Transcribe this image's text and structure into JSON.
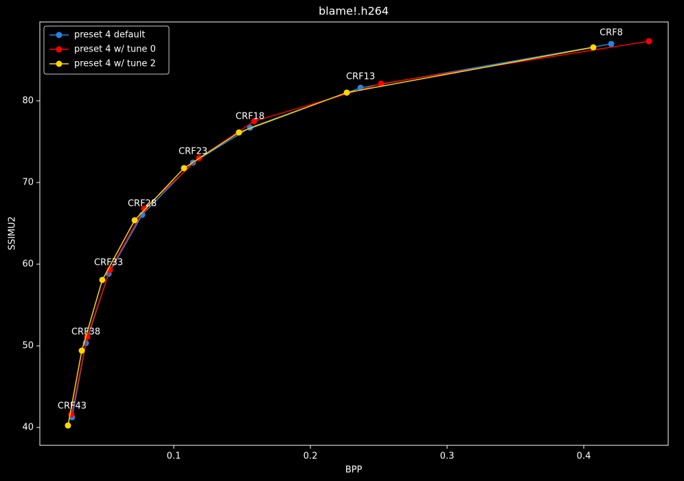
{
  "chart_data": {
    "type": "line",
    "title": "blame!.h264",
    "x_label": "BPP",
    "y_label": "SSIMU2",
    "xlim": [
      0.002,
      0.4618
    ],
    "ylim": [
      37.82,
      89.66
    ],
    "xticks": [
      0.1,
      0.2,
      0.3,
      0.4
    ],
    "yticks": [
      40,
      50,
      60,
      70,
      80
    ],
    "legend": "upper left",
    "series": [
      {
        "name": "preset 4 default",
        "color": "#1e88e5",
        "x": [
          0.0256,
          0.0357,
          0.0523,
          0.0769,
          0.1141,
          0.1558,
          0.2367,
          0.4201
        ],
        "values": [
          41.26,
          50.34,
          58.82,
          66.05,
          72.44,
          76.72,
          81.6,
          86.97
        ]
      },
      {
        "name": "preset 4 w/ tune 0",
        "color": "#ff0000",
        "x": [
          0.0251,
          0.0367,
          0.0533,
          0.0784,
          0.1186,
          0.1588,
          0.2518,
          0.4477
        ],
        "values": [
          41.6,
          51.1,
          59.3,
          66.8,
          73.0,
          77.5,
          82.1,
          87.3
        ]
      },
      {
        "name": "preset 4 w/ tune 2",
        "color": "#ffd700",
        "x": [
          0.0226,
          0.0327,
          0.0477,
          0.0714,
          0.1075,
          0.1477,
          0.2266,
          0.407
        ],
        "values": [
          40.25,
          49.41,
          58.07,
          65.38,
          71.76,
          76.13,
          81.01,
          86.55
        ]
      }
    ],
    "annotations": [
      "CRF43",
      "CRF38",
      "CRF33",
      "CRF28",
      "CRF23",
      "CRF18",
      "CRF13",
      "CRF8"
    ]
  }
}
